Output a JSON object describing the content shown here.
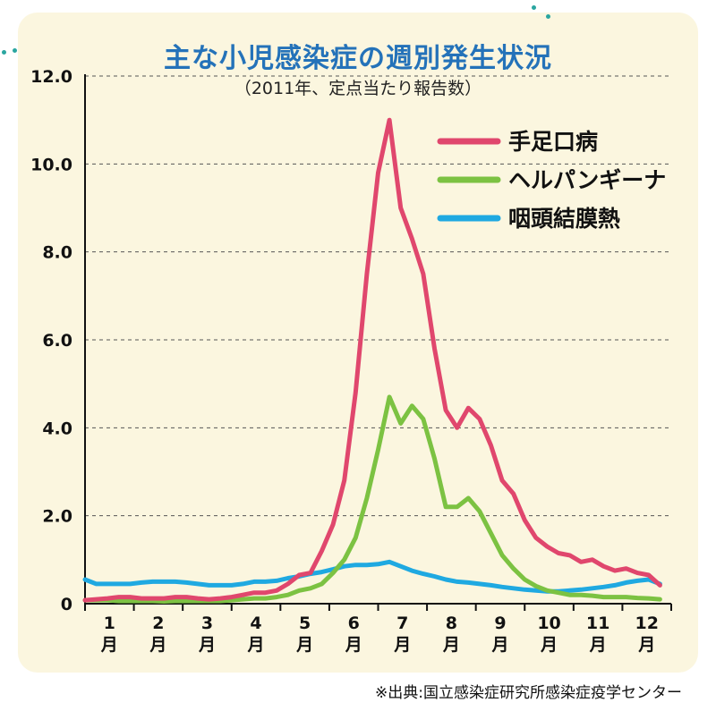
{
  "chart_data": {
    "type": "line",
    "title": "主な小児感染症の週別発生状況",
    "subtitle": "（2011年、定点当たり報告数）",
    "source": "※出典:国立感染症研究所感染症疫学センター",
    "yticks": [
      "12.0",
      "10.0",
      "8.0",
      "6.0",
      "4.0",
      "2.0",
      "0"
    ],
    "ylim": [
      0,
      12
    ],
    "xlim": [
      1,
      53
    ],
    "month_labels": [
      {
        "num": "1",
        "unit": "月"
      },
      {
        "num": "2",
        "unit": "月"
      },
      {
        "num": "3",
        "unit": "月"
      },
      {
        "num": "4",
        "unit": "月"
      },
      {
        "num": "5",
        "unit": "月"
      },
      {
        "num": "6",
        "unit": "月"
      },
      {
        "num": "7",
        "unit": "月"
      },
      {
        "num": "8",
        "unit": "月"
      },
      {
        "num": "9",
        "unit": "月"
      },
      {
        "num": "10",
        "unit": "月"
      },
      {
        "num": "11",
        "unit": "月"
      },
      {
        "num": "12",
        "unit": "月"
      }
    ],
    "grid": "dashed horizontal",
    "legend_position": "top-right",
    "series": [
      {
        "name": "手足口病",
        "color": "#e0476d",
        "values": [
          0.08,
          0.1,
          0.12,
          0.15,
          0.15,
          0.12,
          0.12,
          0.12,
          0.15,
          0.15,
          0.12,
          0.1,
          0.12,
          0.15,
          0.2,
          0.25,
          0.25,
          0.3,
          0.45,
          0.65,
          0.7,
          1.2,
          1.8,
          2.8,
          4.8,
          7.5,
          9.8,
          11.0,
          9.0,
          8.3,
          7.5,
          5.8,
          4.4,
          4.0,
          4.45,
          4.2,
          3.6,
          2.8,
          2.5,
          1.9,
          1.5,
          1.3,
          1.15,
          1.1,
          0.95,
          1.0,
          0.85,
          0.75,
          0.8,
          0.7,
          0.65,
          0.42
        ]
      },
      {
        "name": "ヘルパンギーナ",
        "color": "#7cc242",
        "values": [
          0.08,
          0.08,
          0.08,
          0.06,
          0.06,
          0.06,
          0.06,
          0.05,
          0.06,
          0.06,
          0.06,
          0.06,
          0.06,
          0.08,
          0.1,
          0.12,
          0.12,
          0.15,
          0.2,
          0.3,
          0.35,
          0.45,
          0.7,
          1.0,
          1.5,
          2.4,
          3.5,
          4.7,
          4.1,
          4.5,
          4.2,
          3.3,
          2.2,
          2.2,
          2.4,
          2.1,
          1.6,
          1.1,
          0.8,
          0.55,
          0.4,
          0.3,
          0.25,
          0.2,
          0.2,
          0.18,
          0.15,
          0.15,
          0.15,
          0.13,
          0.12,
          0.1
        ]
      },
      {
        "name": "咽頭結膜熱",
        "color": "#1fa9e1",
        "values": [
          0.55,
          0.45,
          0.45,
          0.45,
          0.45,
          0.48,
          0.5,
          0.5,
          0.5,
          0.48,
          0.45,
          0.42,
          0.42,
          0.42,
          0.45,
          0.5,
          0.5,
          0.52,
          0.58,
          0.62,
          0.68,
          0.72,
          0.78,
          0.85,
          0.88,
          0.88,
          0.9,
          0.95,
          0.85,
          0.75,
          0.68,
          0.62,
          0.55,
          0.5,
          0.48,
          0.45,
          0.42,
          0.38,
          0.35,
          0.32,
          0.3,
          0.28,
          0.28,
          0.3,
          0.32,
          0.35,
          0.38,
          0.42,
          0.48,
          0.52,
          0.55,
          0.45
        ]
      }
    ]
  }
}
